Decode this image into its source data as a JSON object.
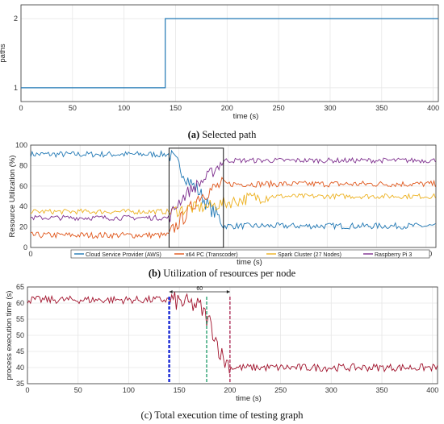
{
  "captions": {
    "a_letter": "(a)",
    "a_text": "Selected path",
    "b_letter": "(b)",
    "b_text": "Utilization of resources per node",
    "c_text": "(c) Total execution time of testing graph"
  },
  "chart_data": [
    {
      "id": "a",
      "type": "line",
      "xlabel": "time (s)",
      "ylabel": "paths",
      "xlim": [
        0,
        405
      ],
      "ylim": [
        0.8,
        2.2
      ],
      "xticks": [
        0,
        50,
        100,
        150,
        200,
        250,
        300,
        350,
        400
      ],
      "yticks": [
        1,
        2
      ],
      "grid": true,
      "series": [
        {
          "color": "#1f77b4",
          "points": [
            [
              0,
              1
            ],
            [
              140,
              1
            ],
            [
              140,
              2
            ],
            [
              405,
              2
            ]
          ]
        }
      ]
    },
    {
      "id": "b",
      "type": "line",
      "xlabel": "time (s)",
      "ylabel": "Resource Utilization (%)",
      "xlim": [
        0,
        410
      ],
      "ylim": [
        0,
        100
      ],
      "xticks": [
        0,
        50,
        100,
        150,
        200,
        250,
        300,
        350,
        400
      ],
      "yticks": [
        0,
        20,
        40,
        60,
        80,
        100
      ],
      "grid": true,
      "legend_position": "bottom",
      "highlight_box": {
        "x": [
          140,
          195
        ],
        "y": [
          0,
          97
        ]
      },
      "series": [
        {
          "name": "Cloud Service Provider (AWS)",
          "color": "#1f77b4",
          "before": 91,
          "after": 21,
          "jitter": 3,
          "transition": [
            [
              140,
              91
            ],
            [
              150,
              80
            ],
            [
              160,
              65
            ],
            [
              170,
              55
            ],
            [
              180,
              40
            ],
            [
              190,
              30
            ],
            [
              195,
              23
            ]
          ]
        },
        {
          "name": "x64 PC (Transcoder)",
          "color": "#e0561a",
          "before": 12,
          "after": 62,
          "jitter": 3,
          "transition": [
            [
              140,
              12
            ],
            [
              150,
              25
            ],
            [
              160,
              35
            ],
            [
              170,
              50
            ],
            [
              180,
              55
            ],
            [
              190,
              60
            ],
            [
              195,
              62
            ]
          ]
        },
        {
          "name": "Spark Cluster (27 Nodes)",
          "color": "#edb120",
          "before": 35,
          "after": 50,
          "jitter": 2.5,
          "transition": [
            [
              140,
              35
            ],
            [
              160,
              38
            ],
            [
              180,
              40
            ],
            [
              200,
              44
            ],
            [
              220,
              48
            ],
            [
              240,
              50
            ]
          ]
        },
        {
          "name": "Raspberry Pi 3",
          "color": "#7e2f8e",
          "before": 29,
          "after": 85,
          "jitter": 2.5,
          "transition": [
            [
              140,
              29
            ],
            [
              150,
              45
            ],
            [
              160,
              55
            ],
            [
              170,
              62
            ],
            [
              180,
              70
            ],
            [
              190,
              80
            ],
            [
              195,
              85
            ]
          ]
        }
      ]
    },
    {
      "id": "c",
      "type": "line",
      "xlabel": "time (s)",
      "ylabel": "process execution time (s)",
      "xlim": [
        0,
        405
      ],
      "ylim": [
        35,
        65
      ],
      "xticks": [
        0,
        50,
        100,
        150,
        200,
        250,
        300,
        350,
        400
      ],
      "yticks": [
        35,
        40,
        45,
        50,
        55,
        60,
        65
      ],
      "grid": true,
      "annotation": {
        "label": "60",
        "x_from": 140,
        "x_to": 200,
        "y": 63.5
      },
      "vlines": [
        {
          "x": 140,
          "color": "#1f2fd6"
        },
        {
          "x": 177,
          "color": "#2aa070"
        },
        {
          "x": 200,
          "color": "#b0305a"
        }
      ],
      "series": [
        {
          "color": "#a0102a",
          "before": 61,
          "after": 40,
          "jitter": 1.2,
          "transition": [
            [
              140,
              61
            ],
            [
              170,
              59
            ],
            [
              180,
              54
            ],
            [
              185,
              50
            ],
            [
              190,
              45
            ],
            [
              195,
              42
            ],
            [
              200,
              41
            ]
          ]
        }
      ]
    }
  ]
}
